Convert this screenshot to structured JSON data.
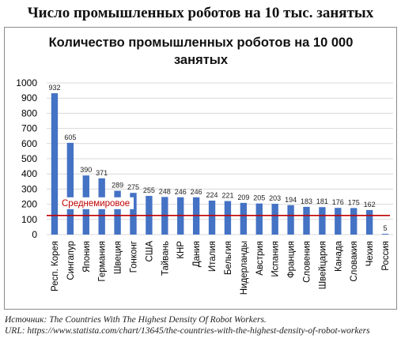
{
  "page_title": "Число промышленных роботов на 10 тыс. занятых",
  "source_line": "Источник: The Countries With The Highest Density Of Robot Workers.",
  "url_line": "URL: https://www.statista.com/chart/13645/the-countries-with-the-highest-density-of-robot-workers",
  "colors": {
    "bar": "#4472c4",
    "average_line": "#c00000",
    "grid": "#d9d9d9"
  },
  "chart_data": {
    "type": "bar",
    "title": "Количество промышленных роботов на 10 000 занятых",
    "xlabel": "",
    "ylabel": "",
    "ylim": [
      0,
      1000
    ],
    "yticks": [
      0,
      100,
      200,
      300,
      400,
      500,
      600,
      700,
      800,
      900,
      1000
    ],
    "grid": true,
    "legend": "none",
    "categories": [
      "Респ. Корея",
      "Сингапур",
      "Япония",
      "Германия",
      "Швеция",
      "Гонконг",
      "США",
      "Тайвань",
      "КНР",
      "Дания",
      "Италия",
      "Бельгия",
      "Нидерланды",
      "Австрия",
      "Испания",
      "Франция",
      "Словения",
      "Швейцария",
      "Канада",
      "Словакия",
      "Чехия",
      "Россия"
    ],
    "values": [
      932,
      605,
      390,
      371,
      289,
      275,
      255,
      248,
      246,
      246,
      224,
      221,
      209,
      205,
      203,
      194,
      183,
      181,
      176,
      175,
      162,
      5
    ],
    "average_line": {
      "label": "Среднемировое",
      "value": 126
    }
  }
}
